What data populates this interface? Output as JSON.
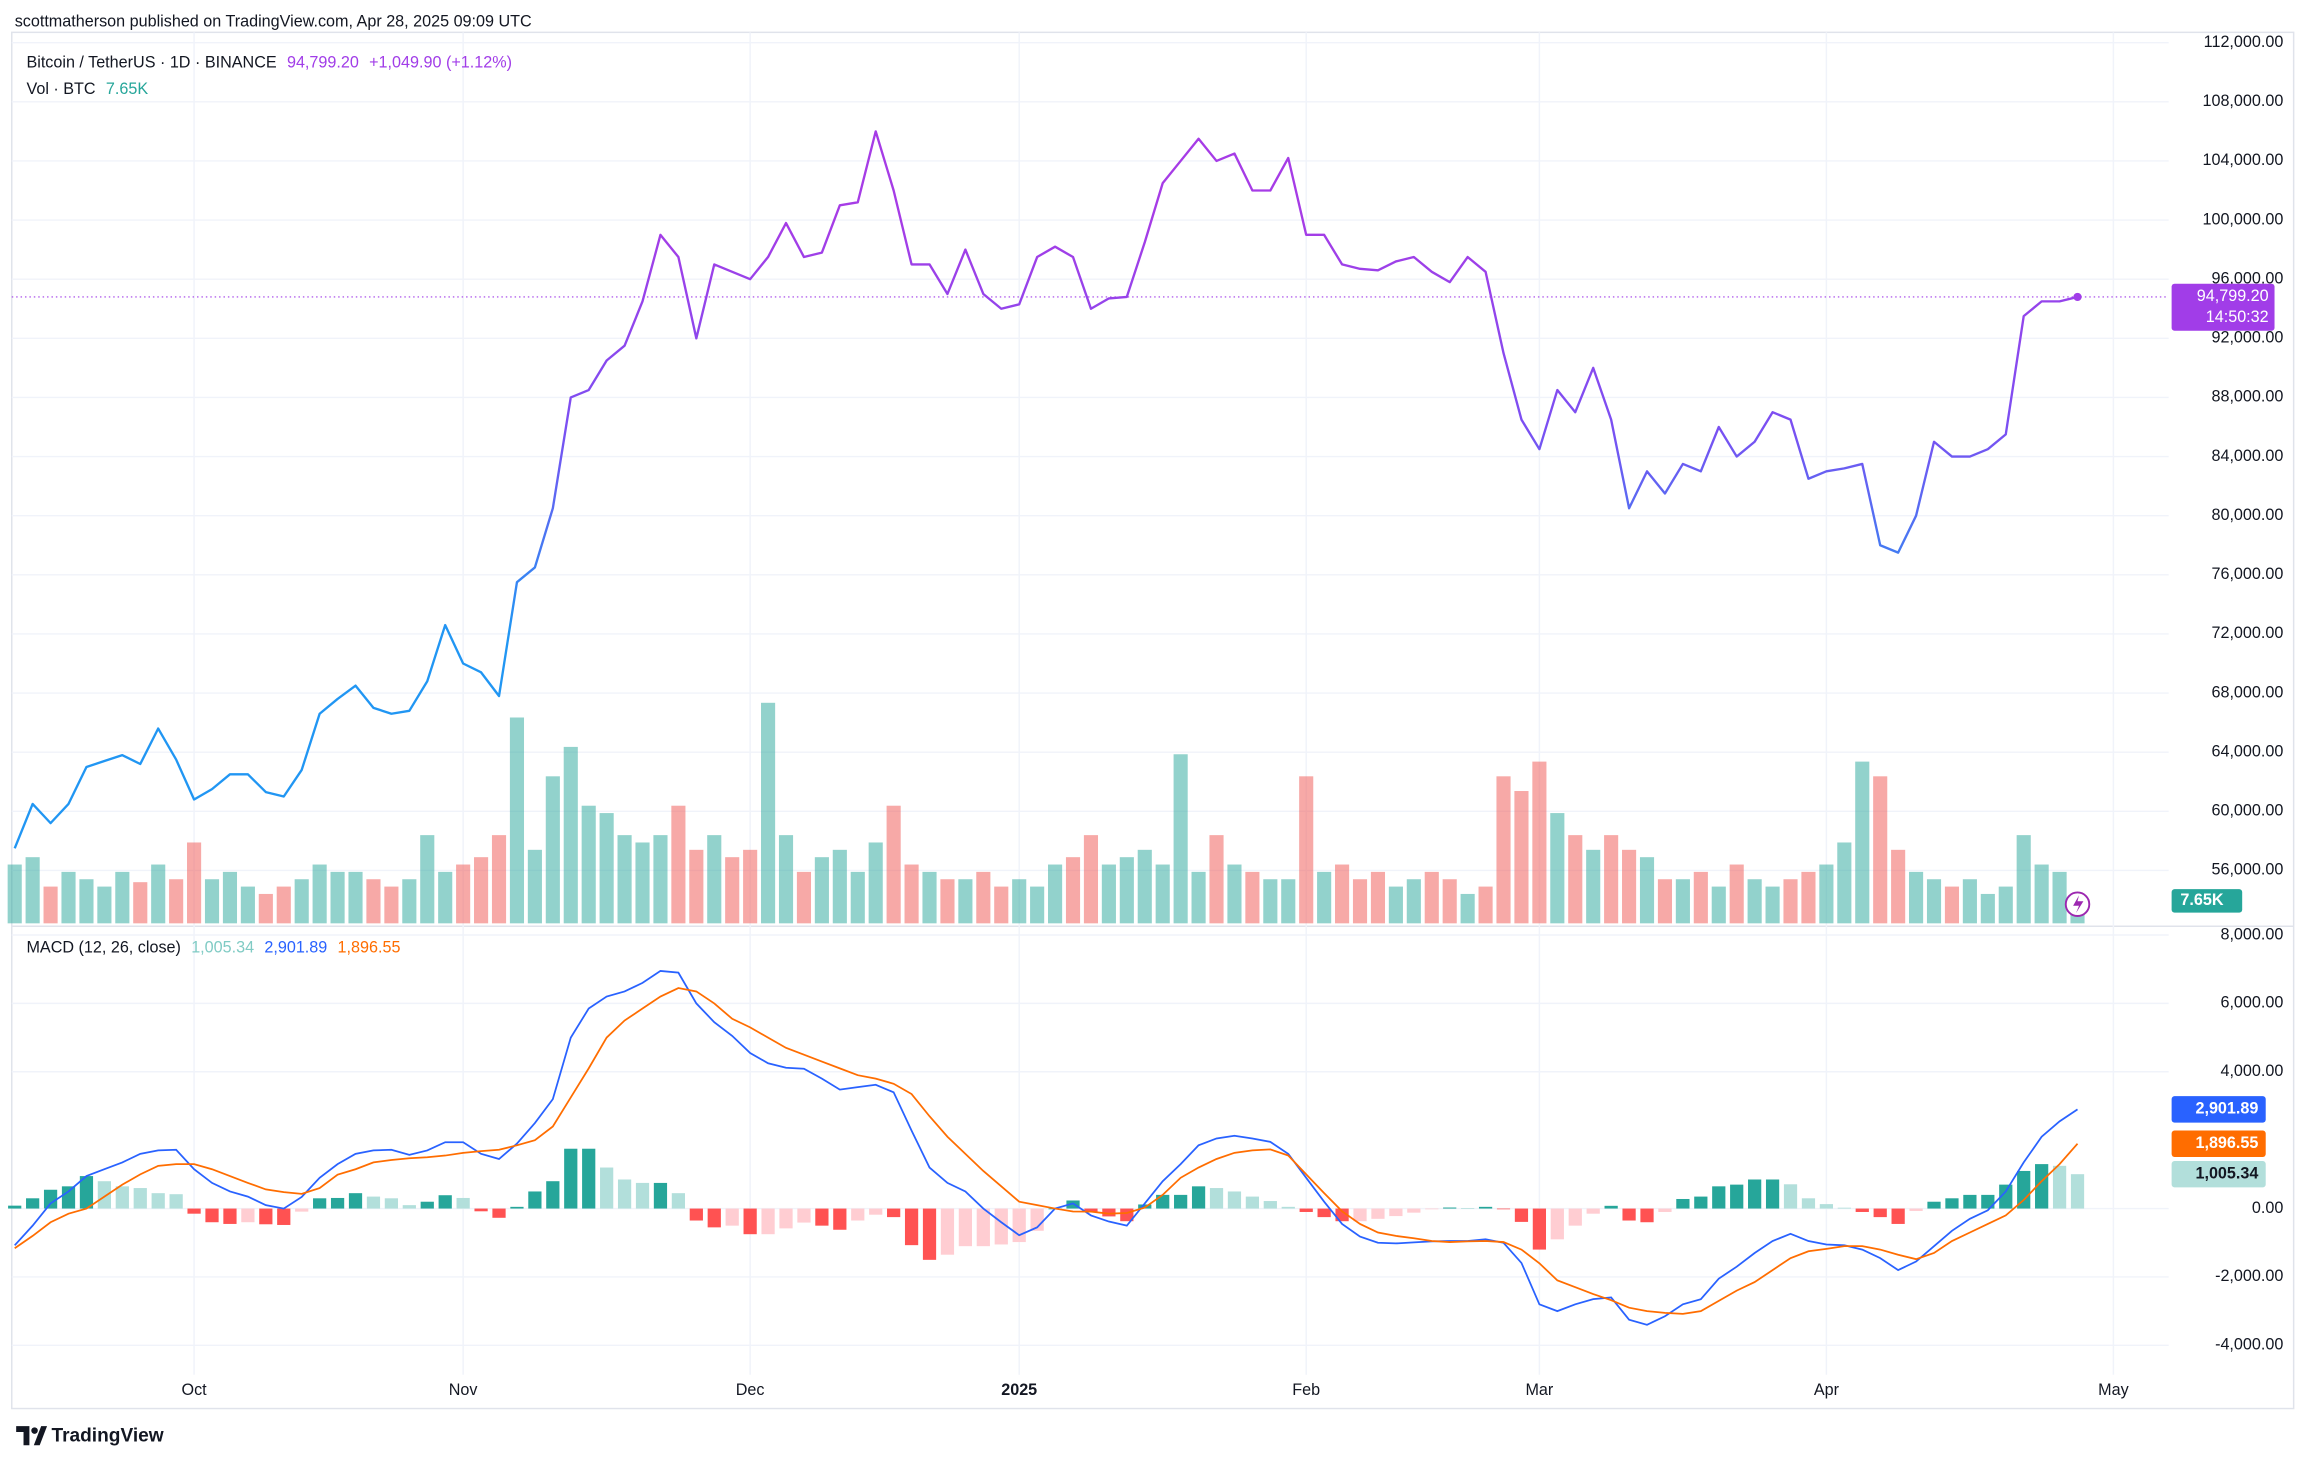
{
  "header": {
    "text": "scottmatherson published on TradingView.com, Apr 28, 2025 09:09 UTC"
  },
  "footer": {
    "logo_text": "TradingView"
  },
  "chart_data": [
    {
      "type": "line",
      "grid": true,
      "ylim": [
        52420,
        112700
      ],
      "yticks": [
        {
          "value": 56000,
          "label": "56,000.00"
        },
        {
          "value": 60000,
          "label": "60,000.00"
        },
        {
          "value": 64000,
          "label": "64,000.00"
        },
        {
          "value": 68000,
          "label": "68,000.00"
        },
        {
          "value": 72000,
          "label": "72,000.00"
        },
        {
          "value": 76000,
          "label": "76,000.00"
        },
        {
          "value": 80000,
          "label": "80,000.00"
        },
        {
          "value": 84000,
          "label": "84,000.00"
        },
        {
          "value": 88000,
          "label": "88,000.00"
        },
        {
          "value": 92000,
          "label": "92,000.00"
        },
        {
          "value": 96000,
          "label": "96,000.00"
        },
        {
          "value": 100000,
          "label": "100,000.00"
        },
        {
          "value": 104000,
          "label": "104,000.00"
        },
        {
          "value": 108000,
          "label": "108,000.00"
        },
        {
          "value": 112000,
          "label": "112,000.00"
        }
      ],
      "series": [
        {
          "name": "Bitcoin / TetherUS · 1D · BINANCE",
          "color": [
            "#2196f3",
            "#7b4ff2",
            "#a63ce6"
          ],
          "tag_color": "#a13de8",
          "last_label": "94,799.20",
          "change": "+1,049.90 (+1.12%)",
          "countdown": "14:50:32",
          "values": [
            57500,
            60500,
            59200,
            60500,
            63000,
            63400,
            63800,
            63200,
            65600,
            63500,
            60800,
            61500,
            62500,
            62500,
            61300,
            61000,
            62800,
            66600,
            67600,
            68500,
            67000,
            66600,
            66800,
            68800,
            72600,
            70000,
            69400,
            67800,
            75500,
            76500,
            80500,
            88000,
            88500,
            90500,
            91500,
            94500,
            99000,
            97500,
            92000,
            97000,
            96500,
            96000,
            97500,
            99800,
            97500,
            97800,
            101000,
            101200,
            106000,
            102000,
            97000,
            97000,
            95000,
            98000,
            95000,
            94000,
            94300,
            97500,
            98200,
            97500,
            94000,
            94700,
            94800,
            98500,
            102500,
            104000,
            105500,
            104000,
            104500,
            102000,
            102000,
            104200,
            99000,
            99000,
            97000,
            96700,
            96600,
            97200,
            97500,
            96500,
            95800,
            97500,
            96500,
            91000,
            86500,
            84500,
            88500,
            87000,
            90000,
            86500,
            80500,
            83000,
            81500,
            83500,
            83000,
            86000,
            84000,
            85000,
            87000,
            86500,
            82500,
            83000,
            83200,
            83500,
            78000,
            77500,
            80000,
            85000,
            84000,
            84000,
            84500,
            85500,
            93500,
            94500,
            94500,
            94799.2,
            null,
            null
          ]
        }
      ],
      "volume": {
        "name": "Vol · BTC",
        "last_label": "7.65K",
        "ylim": [
          0,
          90000
        ],
        "colors": {
          "up": "#26a69a",
          "down": "#ef5350"
        },
        "values": [
          20000,
          22500,
          12500,
          17500,
          15000,
          12500,
          17500,
          14000,
          20000,
          15000,
          27500,
          15000,
          17500,
          12500,
          10000,
          12500,
          15000,
          20000,
          17500,
          17500,
          15000,
          12500,
          15000,
          30000,
          17500,
          20000,
          22500,
          30000,
          70000,
          25000,
          50000,
          60000,
          40000,
          37500,
          30000,
          27500,
          30000,
          40000,
          25000,
          30000,
          22500,
          25000,
          75000,
          30000,
          17500,
          22500,
          25000,
          17500,
          27500,
          40000,
          20000,
          17500,
          15000,
          15000,
          17500,
          12500,
          15000,
          12500,
          20000,
          22500,
          30000,
          20000,
          22500,
          25000,
          20000,
          57500,
          17500,
          30000,
          20000,
          17500,
          15000,
          15000,
          50000,
          17500,
          20000,
          15000,
          17500,
          12500,
          15000,
          17500,
          15000,
          10000,
          12500,
          50000,
          45000,
          55000,
          37500,
          30000,
          25000,
          30000,
          25000,
          22500,
          15000,
          15000,
          17500,
          12500,
          20000,
          15000,
          12500,
          15000,
          17500,
          20000,
          27500,
          55000,
          50000,
          25000,
          17500,
          15000,
          12500,
          15000,
          10000,
          12500,
          30000,
          20000,
          17500,
          7650,
          null,
          null
        ]
      }
    },
    {
      "type": "macd",
      "title": "MACD (12, 26, close)",
      "grid": true,
      "ylim": [
        -4860,
        8170
      ],
      "yticks": [
        {
          "value": -4000,
          "label": "-4,000.00"
        },
        {
          "value": -2000,
          "label": "-2,000.00"
        },
        {
          "value": 0,
          "label": "0.00"
        },
        {
          "value": 4000,
          "label": "4,000.00"
        },
        {
          "value": 6000,
          "label": "6,000.00"
        },
        {
          "value": 8000,
          "label": "8,000.00"
        }
      ],
      "categories": [
        null,
        null,
        null,
        null,
        null,
        null,
        null,
        null,
        null,
        null,
        "Oct",
        null,
        null,
        null,
        null,
        null,
        null,
        null,
        null,
        null,
        null,
        null,
        null,
        null,
        null,
        "Nov",
        null,
        null,
        null,
        null,
        null,
        null,
        null,
        null,
        null,
        null,
        null,
        null,
        null,
        null,
        null,
        "Dec",
        null,
        null,
        null,
        null,
        null,
        null,
        null,
        null,
        null,
        null,
        null,
        null,
        null,
        null,
        "2025",
        null,
        null,
        null,
        null,
        null,
        null,
        null,
        null,
        null,
        null,
        null,
        null,
        null,
        null,
        null,
        "Feb",
        null,
        null,
        null,
        null,
        null,
        null,
        null,
        null,
        null,
        null,
        null,
        null,
        "Mar",
        null,
        null,
        null,
        null,
        null,
        null,
        null,
        null,
        null,
        null,
        null,
        null,
        null,
        null,
        null,
        "Apr",
        null,
        null,
        null,
        null,
        null,
        null,
        null,
        null,
        null,
        null,
        null,
        null,
        null,
        null,
        null,
        "May"
      ],
      "series": [
        {
          "type": "bar",
          "last_label": "1,005.34",
          "tag_color": "#b2dfdb",
          "legend_color": "#80cbc4",
          "colors": {
            "pos_up": "#26a69a",
            "pos_down": "#b2dfdb",
            "neg_down": "#ff5252",
            "neg_up": "#ffcdd2"
          },
          "values": [
            85,
            300,
            550,
            650,
            950,
            800,
            650,
            600,
            450,
            420,
            -150,
            -400,
            -450,
            -400,
            -460,
            -480,
            -90,
            300,
            310,
            450,
            350,
            300,
            100,
            200,
            390,
            310,
            -80,
            -270,
            50,
            500,
            800,
            1750,
            1750,
            1200,
            850,
            750,
            750,
            450,
            -350,
            -550,
            -500,
            -750,
            -750,
            -580,
            -410,
            -500,
            -620,
            -350,
            -180,
            -250,
            -1070,
            -1500,
            -1350,
            -1100,
            -1100,
            -1050,
            -980,
            -650,
            0,
            236,
            -110,
            -230,
            -370,
            120,
            400,
            400,
            650,
            600,
            500,
            350,
            220,
            50,
            -100,
            -250,
            -370,
            -370,
            -300,
            -220,
            -120,
            -10,
            30,
            10,
            50,
            -20,
            -390,
            -1200,
            -900,
            -500,
            -150,
            80,
            -350,
            -400,
            -100,
            280,
            350,
            650,
            700,
            850,
            850,
            710,
            300,
            130,
            25,
            -100,
            -250,
            -450,
            -70,
            200,
            300,
            400,
            400,
            700,
            1100,
            1300,
            1250,
            1005.34,
            null,
            null
          ]
        },
        {
          "type": "line",
          "color": "#2962ff",
          "last_label": "2,901.89",
          "values": [
            -1075,
            -500,
            150,
            500,
            950,
            1150,
            1350,
            1600,
            1700,
            1720,
            1150,
            750,
            500,
            350,
            100,
            0,
            340,
            900,
            1300,
            1600,
            1700,
            1720,
            1570,
            1700,
            1940,
            1940,
            1600,
            1450,
            1900,
            2500,
            3200,
            5000,
            5850,
            6200,
            6350,
            6600,
            6950,
            6900,
            6000,
            5450,
            5050,
            4550,
            4250,
            4120,
            4090,
            3800,
            3480,
            3550,
            3620,
            3400,
            2280,
            1200,
            750,
            500,
            0,
            -400,
            -780,
            -550,
            0,
            150,
            -200,
            -380,
            -500,
            150,
            800,
            1300,
            1850,
            2050,
            2130,
            2050,
            1950,
            1600,
            900,
            200,
            -450,
            -820,
            -1000,
            -1020,
            -990,
            -960,
            -950,
            -950,
            -900,
            -1000,
            -1590,
            -2800,
            -3000,
            -2800,
            -2650,
            -2600,
            -3250,
            -3400,
            -3150,
            -2800,
            -2650,
            -2050,
            -1700,
            -1300,
            -950,
            -740,
            -950,
            -1050,
            -1075,
            -1200,
            -1450,
            -1800,
            -1550,
            -1100,
            -650,
            -300,
            -50,
            500,
            1350,
            2100,
            2550,
            2901.89,
            null,
            null
          ]
        },
        {
          "type": "line",
          "color": "#ff6d00",
          "last_label": "1,896.55",
          "values": [
            -1160,
            -800,
            -400,
            -150,
            0,
            350,
            700,
            1000,
            1250,
            1300,
            1300,
            1150,
            950,
            750,
            560,
            480,
            430,
            600,
            990,
            1150,
            1350,
            1420,
            1470,
            1500,
            1550,
            1630,
            1680,
            1720,
            1850,
            2000,
            2400,
            3250,
            4100,
            5000,
            5500,
            5850,
            6200,
            6450,
            6350,
            6000,
            5550,
            5300,
            5000,
            4700,
            4500,
            4300,
            4100,
            3900,
            3800,
            3650,
            3350,
            2700,
            2100,
            1600,
            1100,
            650,
            200,
            100,
            0,
            -86,
            -90,
            -150,
            -130,
            30,
            400,
            900,
            1200,
            1450,
            1630,
            1700,
            1730,
            1550,
            1000,
            450,
            -80,
            -450,
            -700,
            -800,
            -870,
            -950,
            -980,
            -960,
            -950,
            -980,
            -1200,
            -1600,
            -2100,
            -2300,
            -2500,
            -2680,
            -2900,
            -3000,
            -3050,
            -3080,
            -3000,
            -2700,
            -2400,
            -2150,
            -1800,
            -1450,
            -1250,
            -1180,
            -1100,
            -1100,
            -1200,
            -1350,
            -1480,
            -1300,
            -950,
            -700,
            -450,
            -200,
            250,
            800,
            1300,
            1896.55,
            null,
            null
          ]
        }
      ]
    }
  ]
}
